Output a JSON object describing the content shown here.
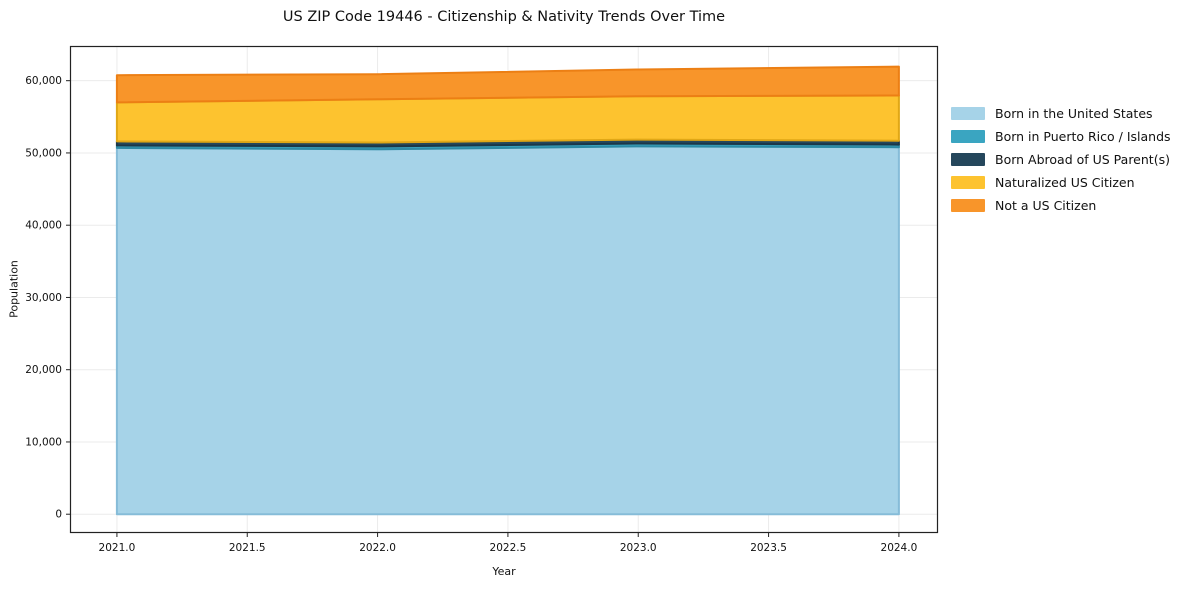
{
  "title": "US ZIP Code 19446 - Citizenship & Nativity Trends Over Time",
  "chart_data": {
    "type": "area",
    "stacked": true,
    "title": "US ZIP Code 19446 - Citizenship & Nativity Trends Over Time",
    "xlabel": "Year",
    "ylabel": "Population",
    "x": [
      2021,
      2022,
      2023,
      2024
    ],
    "series": [
      {
        "name": "Born in the United States",
        "color": "#a6d3e8",
        "edge": "#86bcd8",
        "values": [
          50700,
          50500,
          50900,
          50800
        ]
      },
      {
        "name": "Born in Puerto Rico / Islands",
        "color": "#3aa5c1",
        "edge": "#2e8aa4",
        "values": [
          350,
          400,
          400,
          350
        ]
      },
      {
        "name": "Born Abroad of US Parent(s)",
        "color": "#25475c",
        "edge": "#1b3748",
        "values": [
          550,
          550,
          550,
          550
        ]
      },
      {
        "name": "Naturalized US Citizen",
        "color": "#fdc32f",
        "edge": "#e0a716",
        "values": [
          5400,
          5970,
          6000,
          6250
        ]
      },
      {
        "name": "Not a US Citizen",
        "color": "#f8952a",
        "edge": "#ec7f14",
        "values": [
          3760,
          3480,
          3700,
          4000
        ]
      }
    ],
    "totals": [
      60760,
      60900,
      61550,
      61950
    ],
    "xticks": {
      "values": [
        2021,
        2021.5,
        2022,
        2022.5,
        2023,
        2023.5,
        2024
      ],
      "labels": [
        "2021.0",
        "2021.5",
        "2022.0",
        "2022.5",
        "2023.0",
        "2023.5",
        "2024.0"
      ]
    },
    "yticks": {
      "values": [
        0,
        10000,
        20000,
        30000,
        40000,
        50000,
        60000
      ],
      "labels": [
        "0",
        "10,000",
        "20,000",
        "30,000",
        "40,000",
        "50,000",
        "60,000"
      ]
    },
    "xlim": [
      2020.82,
      2024.15
    ],
    "ylim": [
      -2600,
      64800
    ],
    "grid": true,
    "grid_color": "#ebebeb",
    "spine_color": "#222222",
    "tick_text_color": "#111111",
    "legend_position": "right",
    "legend_frame": false
  }
}
